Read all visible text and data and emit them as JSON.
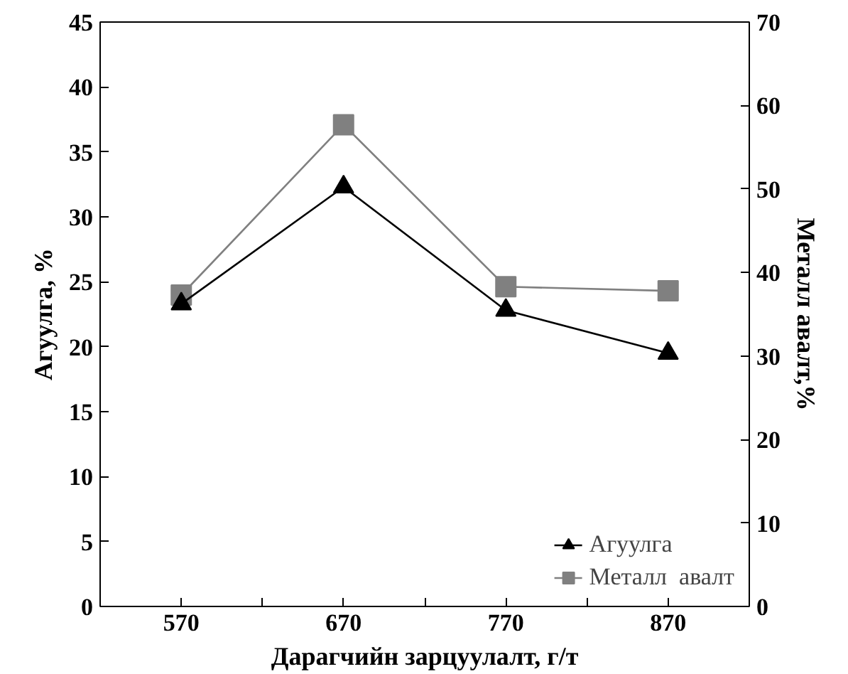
{
  "chart_data": {
    "type": "line",
    "xlabel": "Дарагчийн зарцуулалт, г/т",
    "ylabel": "Агуулга, %",
    "y2label": "Металл авалт,%",
    "x": [
      570,
      670,
      770,
      870
    ],
    "xlim": [
      520,
      920
    ],
    "xticks": [
      {
        "value": 520,
        "label": null
      },
      570,
      {
        "value": 620,
        "label": null
      },
      670,
      {
        "value": 720,
        "label": null
      },
      770,
      {
        "value": 820,
        "label": null
      },
      870,
      {
        "value": 920,
        "label": null
      }
    ],
    "ylim": [
      0,
      45
    ],
    "yticks": [
      0,
      5,
      10,
      15,
      20,
      25,
      30,
      35,
      40,
      45
    ],
    "y2lim": [
      0,
      70
    ],
    "y2ticks": [
      0,
      10,
      20,
      30,
      40,
      50,
      60,
      70
    ],
    "series": [
      {
        "name": "Агуулга",
        "color": "#000000",
        "marker": "triangle",
        "values": [
          23.3,
          32.3,
          22.8,
          19.5
        ]
      },
      {
        "name": "Металл  авалт",
        "color": "#808080",
        "marker": "square",
        "axis": "y2",
        "values": [
          37.3,
          57.7,
          38.3,
          37.8
        ]
      }
    ],
    "legend": "bottom right",
    "grid": false
  }
}
